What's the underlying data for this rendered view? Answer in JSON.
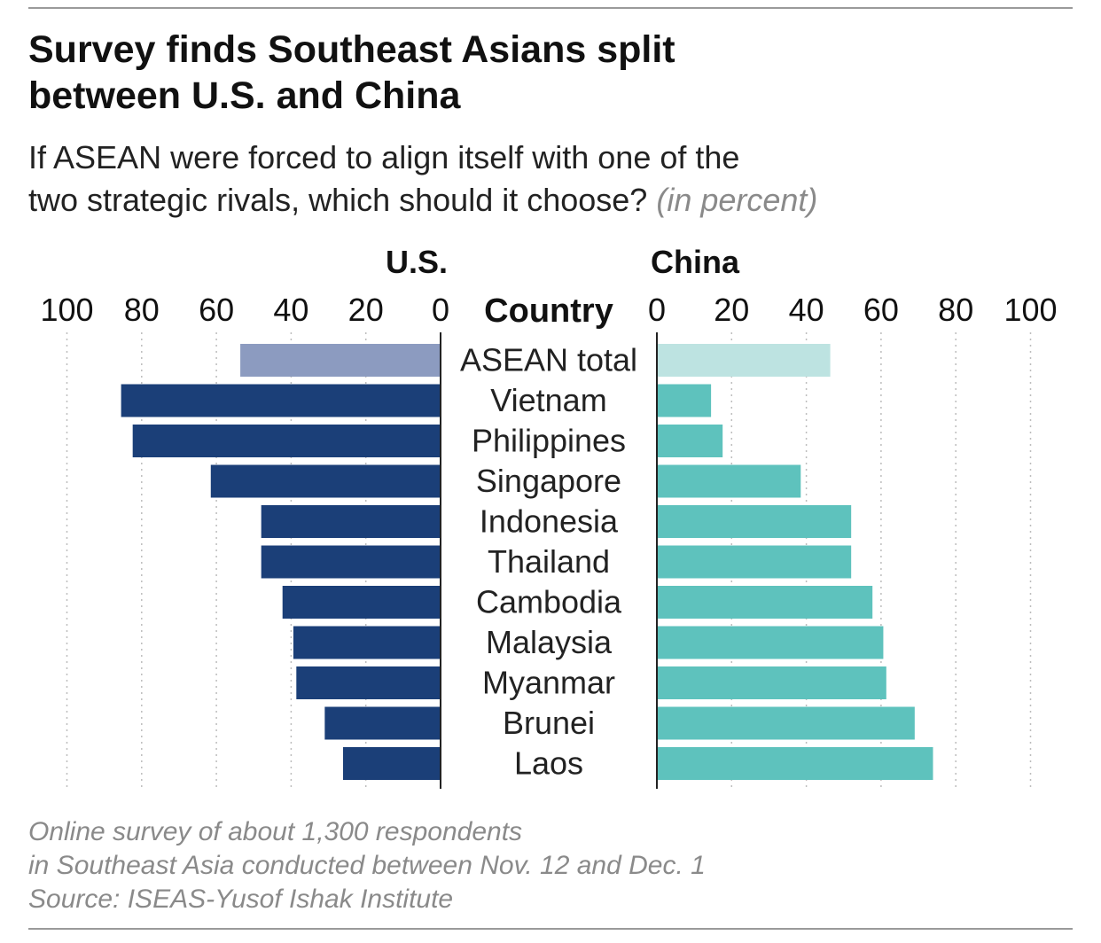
{
  "header": {
    "title_line1": "Survey finds Southeast Asians split",
    "title_line2": "between U.S. and China",
    "subtitle_line1": "If ASEAN were forced to align itself with one of the",
    "subtitle_line2": "two strategic rivals, which should it choose?",
    "subtitle_unit": "(in percent)"
  },
  "chart_data": {
    "type": "bar",
    "orientation": "horizontal-diverging",
    "column_header": "Country",
    "categories": [
      "ASEAN total",
      "Vietnam",
      "Philippines",
      "Singapore",
      "Indonesia",
      "Thailand",
      "Cambodia",
      "Malaysia",
      "Myanmar",
      "Brunei",
      "Laos"
    ],
    "series": [
      {
        "name": "U.S.",
        "side": "left",
        "color": "#1b3f78",
        "highlight_color": "#8c9bc0",
        "values": [
          53.6,
          85.5,
          82.4,
          61.5,
          48.0,
          48.0,
          42.3,
          39.4,
          38.6,
          31.0,
          26.1
        ]
      },
      {
        "name": "China",
        "side": "right",
        "color": "#5ec2bd",
        "highlight_color": "#bde3e1",
        "values": [
          46.4,
          14.5,
          17.6,
          38.5,
          52.0,
          52.0,
          57.7,
          60.6,
          61.4,
          69.0,
          73.9
        ]
      }
    ],
    "highlight_category": "ASEAN total",
    "xlim": [
      0,
      100
    ],
    "ticks": [
      100,
      80,
      60,
      40,
      20,
      0
    ],
    "grid": true
  },
  "footer": {
    "note_line1": "Online survey of about 1,300 respondents",
    "note_line2": "in Southeast Asia conducted between Nov. 12 and Dec. 1",
    "source": "Source: ISEAS-Yusof Ishak Institute"
  }
}
